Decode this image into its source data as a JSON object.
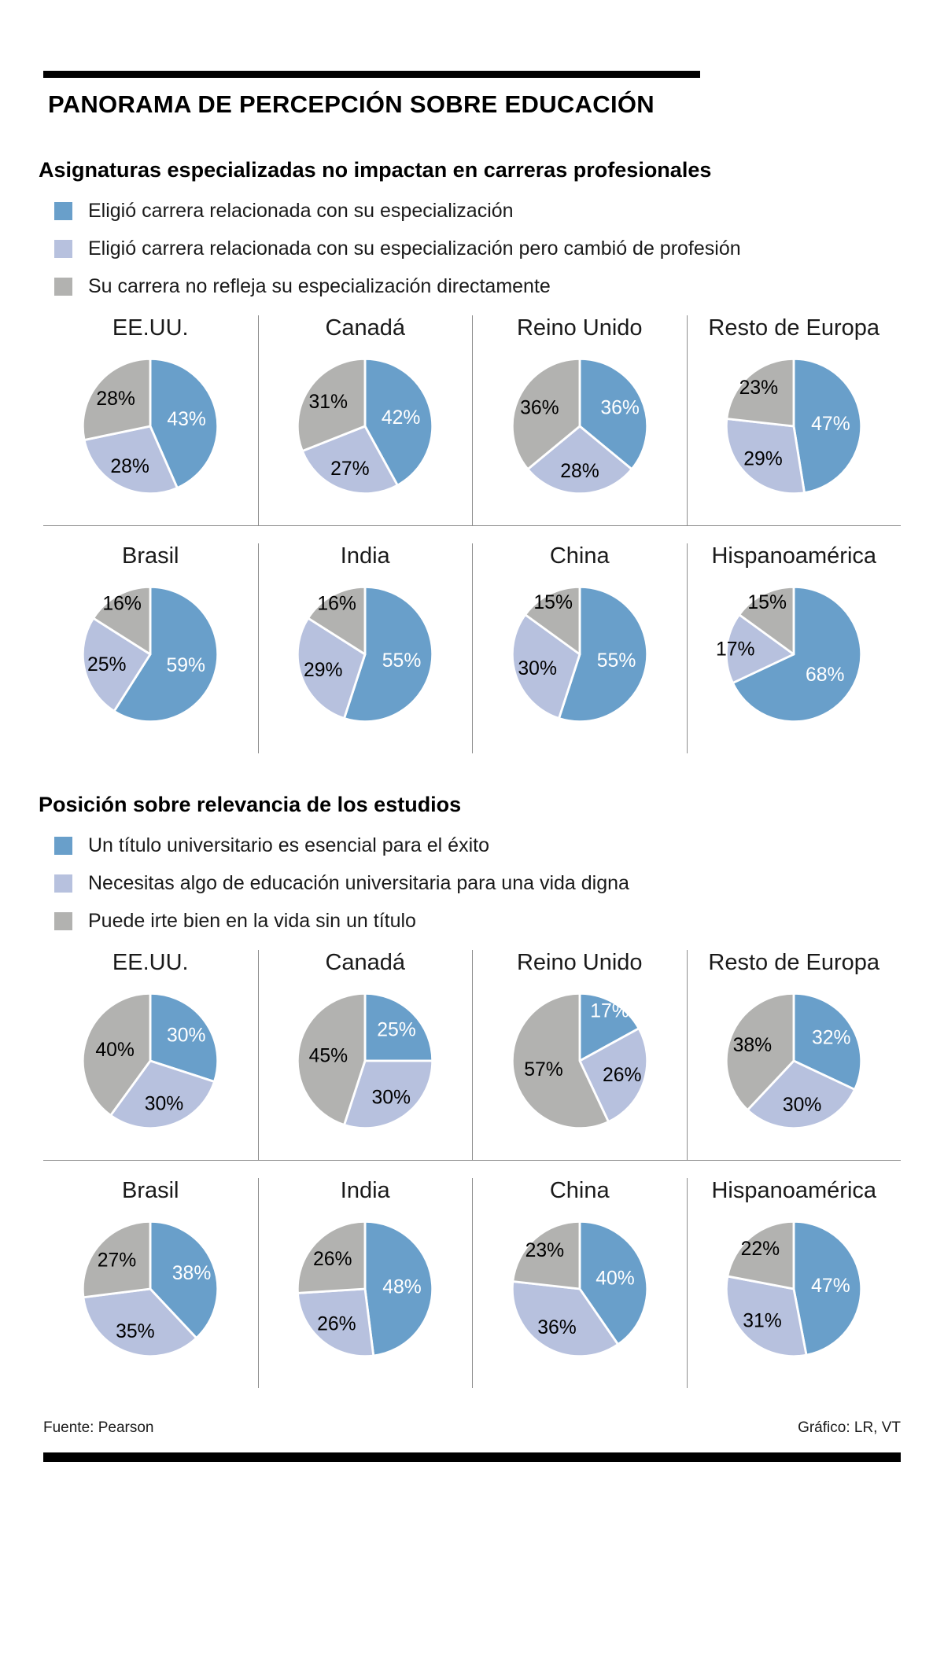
{
  "page": {
    "title": "PANORAMA DE PERCEPCIÓN SOBRE EDUCACIÓN",
    "footer": {
      "source": "Fuente: Pearson",
      "credit": "Gráfico: LR, VT"
    }
  },
  "colors": {
    "blue": "#699fca",
    "lavender": "#b7c1de",
    "gray": "#b2b2b0",
    "value_label_on_blue": "#ffffff",
    "value_label_default": "#000000",
    "divider": "#8c8c8c",
    "bar": "#000000"
  },
  "chart_data": [
    {
      "type": "pie",
      "unit": "%",
      "title": "Asignaturas especializadas no impactan en carreras profesionales",
      "legend": [
        {
          "key": "blue",
          "label": "Eligió carrera relacionada con su especialización"
        },
        {
          "key": "lavender",
          "label": "Eligió carrera relacionada con su especialización pero cambió de profesión"
        },
        {
          "key": "gray",
          "label": "Su carrera no refleja su especialización directamente"
        }
      ],
      "rows": [
        [
          {
            "label": "EE.UU.",
            "values": [
              43,
              28,
              28
            ]
          },
          {
            "label": "Canadá",
            "values": [
              42,
              27,
              31
            ]
          },
          {
            "label": "Reino Unido",
            "values": [
              36,
              28,
              36
            ]
          },
          {
            "label": "Resto de Europa",
            "values": [
              47,
              29,
              23
            ]
          }
        ],
        [
          {
            "label": "Brasil",
            "values": [
              59,
              25,
              16
            ]
          },
          {
            "label": "India",
            "values": [
              55,
              29,
              16
            ]
          },
          {
            "label": "China",
            "values": [
              55,
              30,
              15
            ]
          },
          {
            "label": "Hispanoamérica",
            "values": [
              68,
              17,
              15
            ]
          }
        ]
      ]
    },
    {
      "type": "pie",
      "unit": "%",
      "title": "Posición sobre relevancia de los estudios",
      "legend": [
        {
          "key": "blue",
          "label": "Un título universitario es esencial para el éxito"
        },
        {
          "key": "lavender",
          "label": "Necesitas algo de educación universitaria para una vida digna"
        },
        {
          "key": "gray",
          "label": "Puede irte bien en la vida sin un título"
        }
      ],
      "rows": [
        [
          {
            "label": "EE.UU.",
            "values": [
              30,
              30,
              40
            ]
          },
          {
            "label": "Canadá",
            "values": [
              25,
              30,
              45
            ]
          },
          {
            "label": "Reino Unido",
            "values": [
              17,
              26,
              57
            ]
          },
          {
            "label": "Resto de Europa",
            "values": [
              32,
              30,
              38
            ]
          }
        ],
        [
          {
            "label": "Brasil",
            "values": [
              38,
              35,
              27
            ]
          },
          {
            "label": "India",
            "values": [
              48,
              26,
              26
            ]
          },
          {
            "label": "China",
            "values": [
              40,
              36,
              23
            ]
          },
          {
            "label": "Hispanoamérica",
            "values": [
              47,
              31,
              22
            ]
          }
        ]
      ]
    }
  ]
}
